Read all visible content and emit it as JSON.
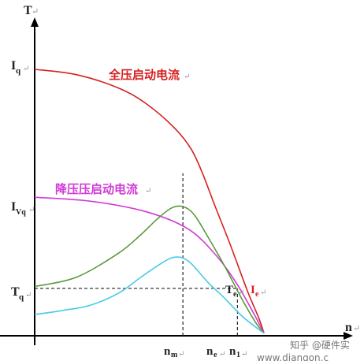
{
  "chart_data": {
    "type": "line",
    "axes": {
      "y_label": "T",
      "x_label": "n"
    },
    "y_labels": {
      "Iq": "I",
      "Iq_sub": "q",
      "Ivq": "I",
      "Ivq_sub": "Vq",
      "Tq": "T",
      "Tq_sub": "q"
    },
    "x_markers": {
      "nm": "n",
      "nm_sub": "m",
      "ne": "n",
      "ne_sub": "e",
      "n1": "n",
      "n1_sub": "1"
    },
    "point_labels": {
      "Te": "T",
      "Te_sub": "e",
      "Ie": "I",
      "Ie_sub": "e"
    },
    "annotations": {
      "full_voltage": "全压启动电流",
      "reduced_voltage": "降压压启动电流"
    },
    "watermark": {
      "line1": "知乎 @硬件实",
      "line2": "www.diangon.c"
    },
    "series": [
      {
        "name": "全压启动电流",
        "color": "#d62020",
        "points": [
          [
            0.0,
            1.0
          ],
          [
            0.15,
            0.98
          ],
          [
            0.3,
            0.93
          ],
          [
            0.4,
            0.87
          ],
          [
            0.5,
            0.78
          ],
          [
            0.56,
            0.7
          ],
          [
            0.6,
            0.61
          ],
          [
            0.64,
            0.5
          ],
          [
            0.7,
            0.34
          ],
          [
            0.76,
            0.17
          ],
          [
            0.8,
            0.07
          ],
          [
            0.82,
            0.01
          ]
        ]
      },
      {
        "name": "降压压启动电流",
        "color": "#d13ad6",
        "points": [
          [
            0.0,
            0.52
          ],
          [
            0.2,
            0.505
          ],
          [
            0.4,
            0.465
          ],
          [
            0.55,
            0.4
          ],
          [
            0.65,
            0.3
          ],
          [
            0.72,
            0.2
          ],
          [
            0.78,
            0.09
          ],
          [
            0.81,
            0.03
          ],
          [
            0.82,
            0.01
          ]
        ]
      },
      {
        "name": "",
        "color": "#5a9a3c",
        "points": [
          [
            0.0,
            0.185
          ],
          [
            0.15,
            0.22
          ],
          [
            0.3,
            0.31
          ],
          [
            0.38,
            0.38
          ],
          [
            0.44,
            0.44
          ],
          [
            0.49,
            0.48
          ],
          [
            0.53,
            0.485
          ],
          [
            0.57,
            0.455
          ],
          [
            0.62,
            0.37
          ],
          [
            0.68,
            0.26
          ],
          [
            0.74,
            0.14
          ],
          [
            0.79,
            0.05
          ],
          [
            0.82,
            0.01
          ]
        ]
      },
      {
        "name": "",
        "color": "#49c9e6",
        "points": [
          [
            0.0,
            0.08
          ],
          [
            0.1,
            0.095
          ],
          [
            0.2,
            0.115
          ],
          [
            0.3,
            0.16
          ],
          [
            0.38,
            0.22
          ],
          [
            0.45,
            0.27
          ],
          [
            0.5,
            0.295
          ],
          [
            0.55,
            0.28
          ],
          [
            0.62,
            0.2
          ],
          [
            0.68,
            0.14
          ],
          [
            0.74,
            0.075
          ],
          [
            0.8,
            0.025
          ],
          [
            0.82,
            0.01
          ]
        ]
      }
    ],
    "dashed_lines": [
      {
        "from": [
          0.0,
          0.178
        ],
        "to": [
          0.725,
          0.178
        ]
      },
      {
        "from": [
          0.53,
          0.0
        ],
        "to": [
          0.53,
          0.61
        ]
      },
      {
        "from": [
          0.725,
          0.0
        ],
        "to": [
          0.725,
          0.178
        ]
      }
    ],
    "xlim": [
      0,
      1.0
    ],
    "ylim": [
      0,
      1.0
    ]
  }
}
